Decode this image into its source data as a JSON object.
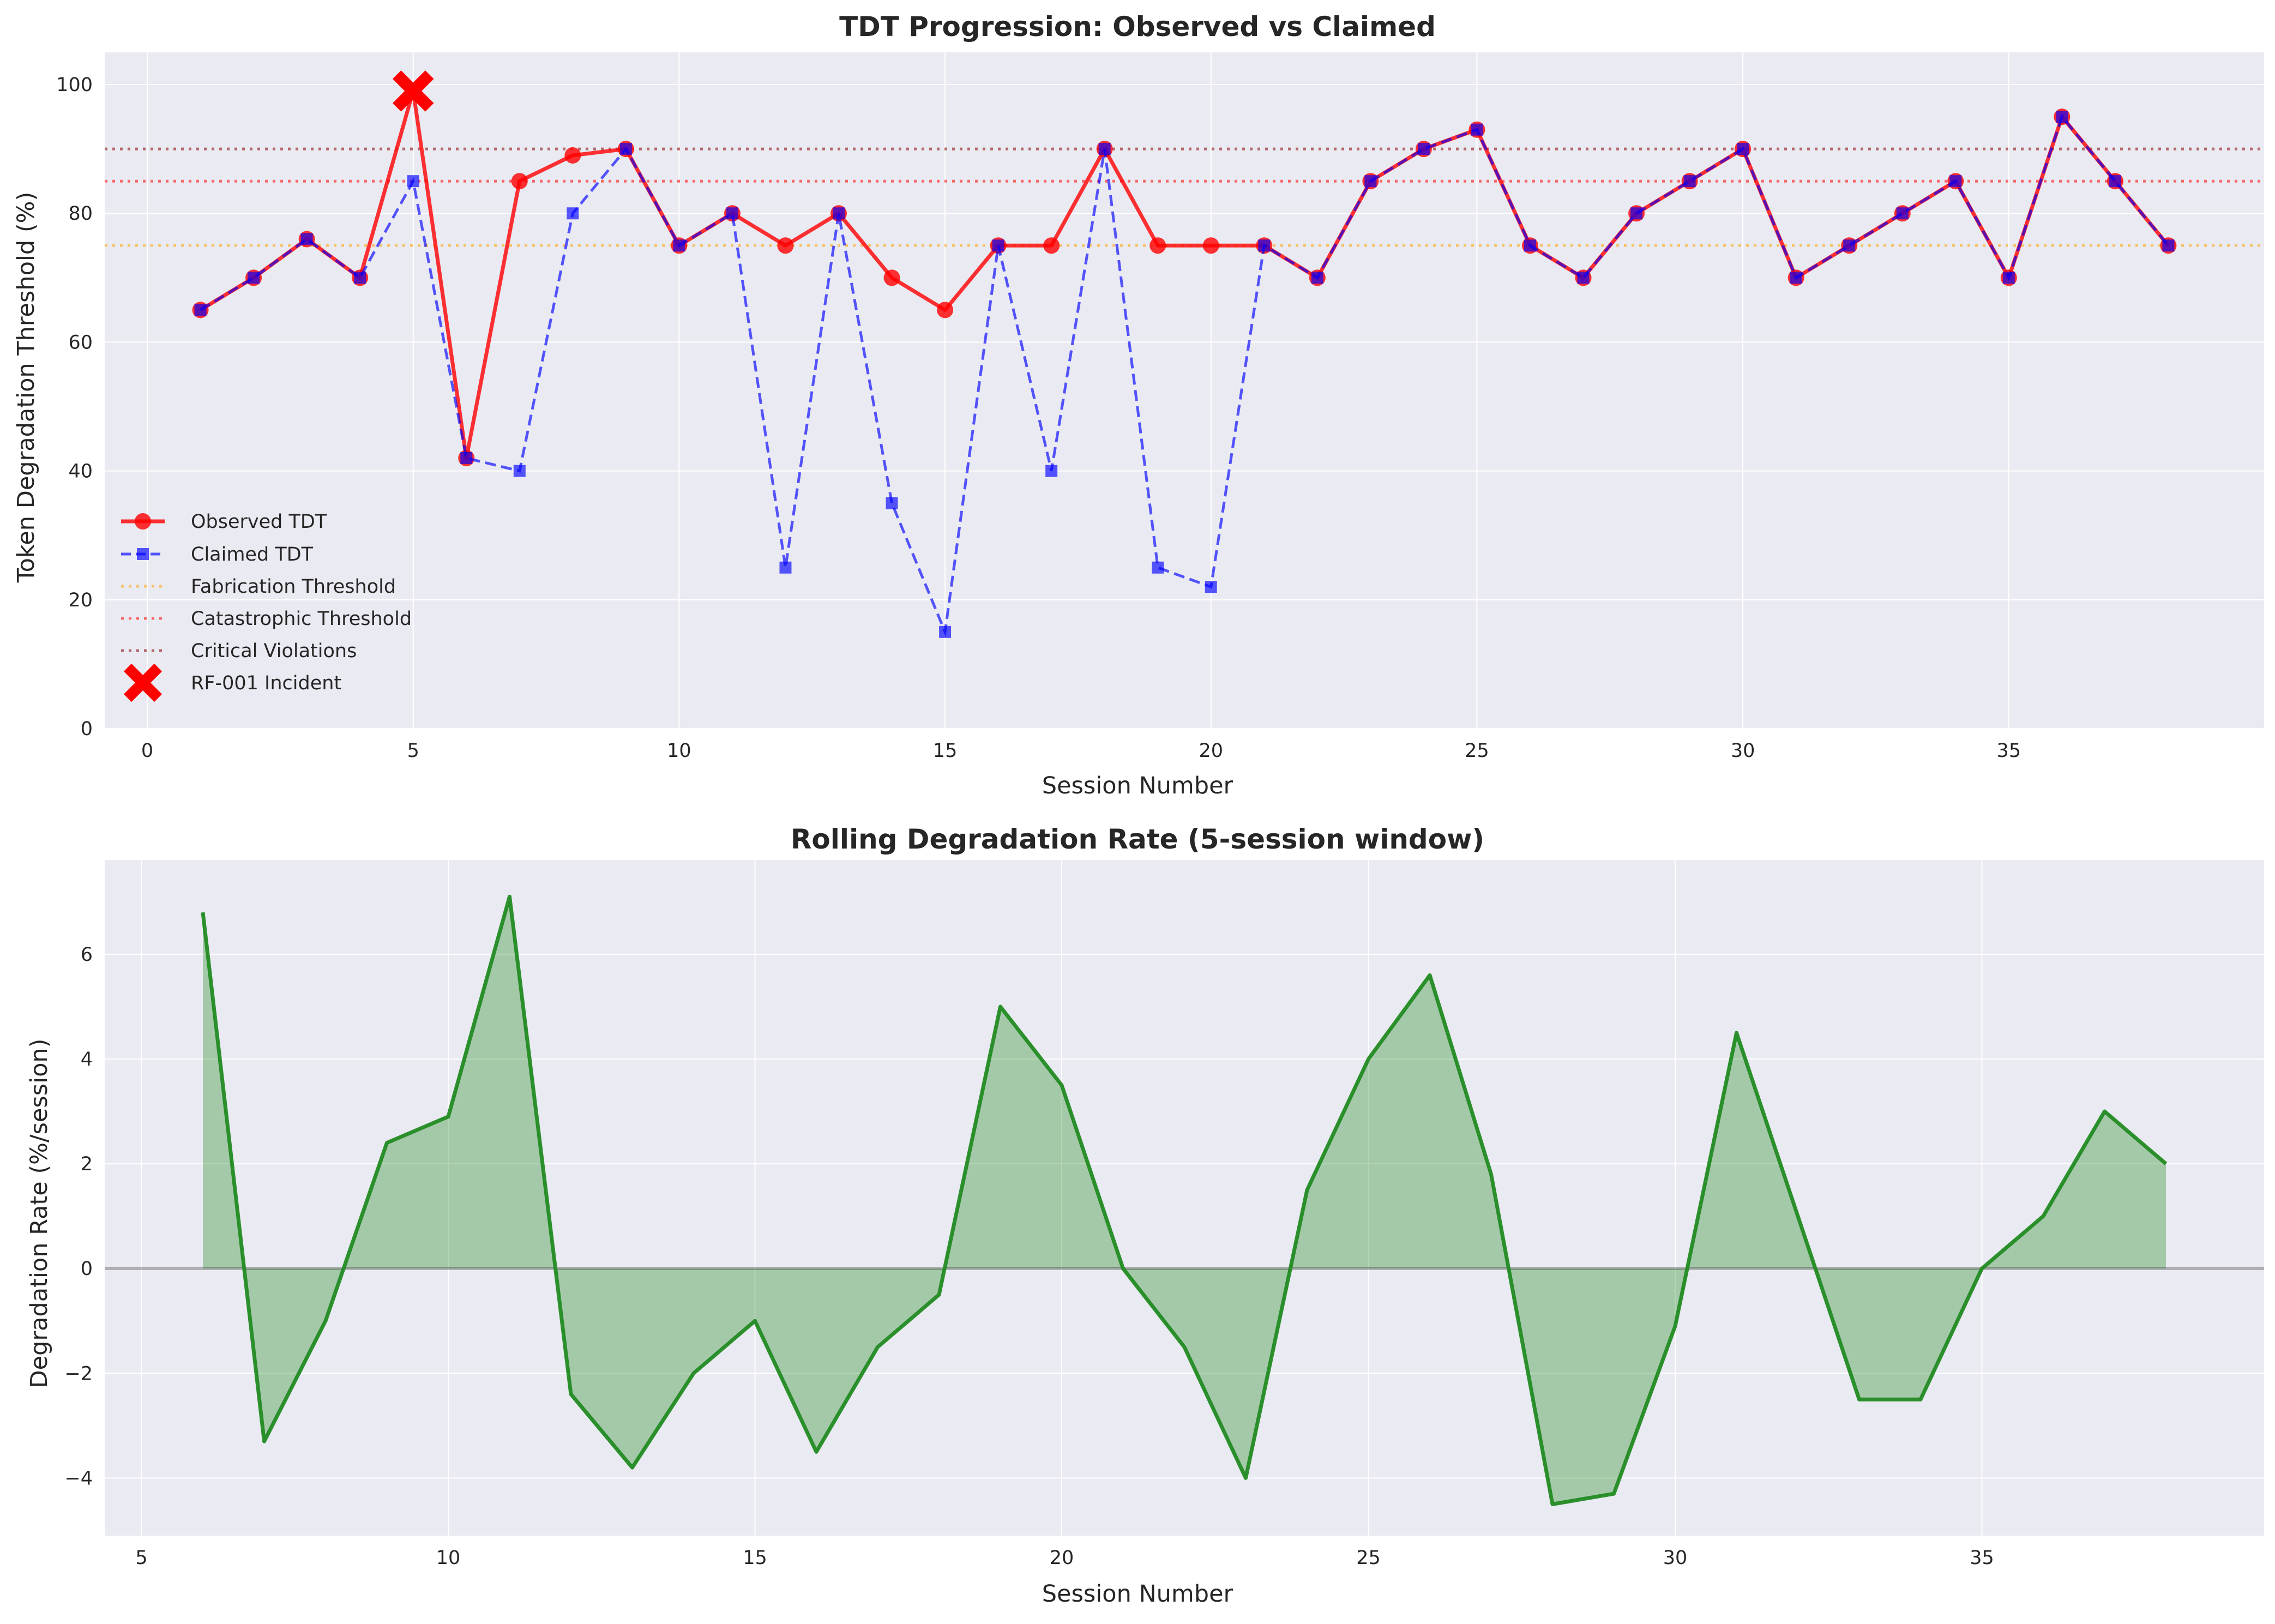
{
  "chart_data": [
    {
      "type": "line",
      "title": "TDT Progression: Observed vs Claimed",
      "xlabel": "Session Number",
      "ylabel": "Token Degradation Threshold (%)",
      "xlim": [
        -0.8,
        39.8
      ],
      "ylim": [
        0,
        105
      ],
      "xticks": [
        0,
        5,
        10,
        15,
        20,
        25,
        30,
        35
      ],
      "yticks": [
        0,
        20,
        40,
        60,
        80,
        100
      ],
      "grid": true,
      "legend_position": "lower-left",
      "x": [
        1,
        2,
        3,
        4,
        5,
        6,
        7,
        8,
        9,
        10,
        11,
        12,
        13,
        14,
        15,
        16,
        17,
        18,
        19,
        20,
        21,
        22,
        23,
        24,
        25,
        26,
        27,
        28,
        29,
        30,
        31,
        32,
        33,
        34,
        35,
        36,
        37,
        38
      ],
      "series": [
        {
          "name": "Observed TDT",
          "style": "solid-circle",
          "color": "#ff0000",
          "values": [
            65,
            70,
            76,
            70,
            99,
            42,
            85,
            89,
            90,
            75,
            80,
            75,
            80,
            70,
            65,
            75,
            75,
            90,
            75,
            75,
            75,
            70,
            85,
            90,
            93,
            75,
            70,
            80,
            85,
            90,
            70,
            75,
            80,
            85,
            70,
            95,
            85,
            75
          ]
        },
        {
          "name": "Claimed TDT",
          "style": "dashed-square",
          "color": "#0000ff",
          "values": [
            65,
            70,
            76,
            70,
            85,
            42,
            40,
            80,
            90,
            75,
            80,
            25,
            80,
            35,
            15,
            75,
            40,
            90,
            25,
            22,
            75,
            70,
            85,
            90,
            93,
            75,
            70,
            80,
            85,
            90,
            70,
            75,
            80,
            85,
            70,
            95,
            85,
            75
          ]
        }
      ],
      "thresholds": [
        {
          "name": "Fabrication Threshold",
          "value": 75,
          "color": "#ffa500"
        },
        {
          "name": "Catastrophic Threshold",
          "value": 85,
          "color": "#ff0000"
        },
        {
          "name": "Critical Violations",
          "value": 90,
          "color": "#8b0000"
        }
      ],
      "incident": {
        "name": "RF-001 Incident",
        "x": 5,
        "y": 99,
        "color": "#ff0000"
      }
    },
    {
      "type": "area",
      "title": "Rolling Degradation Rate (5-session window)",
      "xlabel": "Session Number",
      "ylabel": "Degradation Rate (%/session)",
      "xlim": [
        4.4,
        39.6
      ],
      "ylim": [
        -5.1,
        7.8
      ],
      "xticks": [
        5,
        10,
        15,
        20,
        25,
        30,
        35
      ],
      "yticks": [
        -4,
        -2,
        0,
        2,
        4,
        6
      ],
      "grid": true,
      "baseline": 0,
      "line_color": "#228b22",
      "fill_color": "#228b22",
      "x": [
        6,
        7,
        8,
        9,
        10,
        11,
        12,
        13,
        14,
        15,
        16,
        17,
        18,
        19,
        20,
        21,
        22,
        23,
        24,
        25,
        26,
        27,
        28,
        29,
        30,
        31,
        32,
        33,
        34,
        35,
        36,
        37,
        38
      ],
      "values": [
        6.8,
        -3.3,
        -1.0,
        2.4,
        2.9,
        7.1,
        -2.4,
        -3.8,
        -2.0,
        -1.0,
        -3.5,
        -1.5,
        -0.5,
        5.0,
        3.5,
        0.0,
        -1.5,
        -4.0,
        1.5,
        4.0,
        5.6,
        1.8,
        -4.5,
        -4.3,
        -1.1,
        4.5,
        1.0,
        -2.5,
        -2.5,
        0.0,
        1.0,
        3.0,
        2.0
      ]
    }
  ]
}
